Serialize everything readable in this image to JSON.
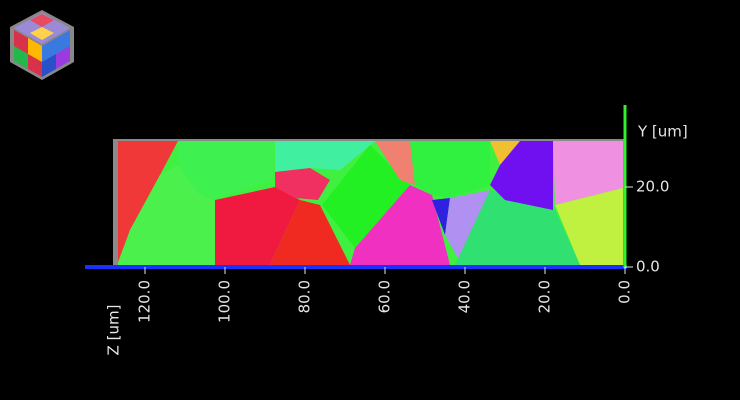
{
  "y_axis": {
    "label": "Y [um]",
    "ticks": [
      "0.0",
      "20.0"
    ]
  },
  "z_axis": {
    "label": "Z [um]",
    "ticks": [
      "0.0",
      "20.0",
      "40.0",
      "60.0",
      "80.0",
      "100.0",
      "120.0"
    ]
  }
}
